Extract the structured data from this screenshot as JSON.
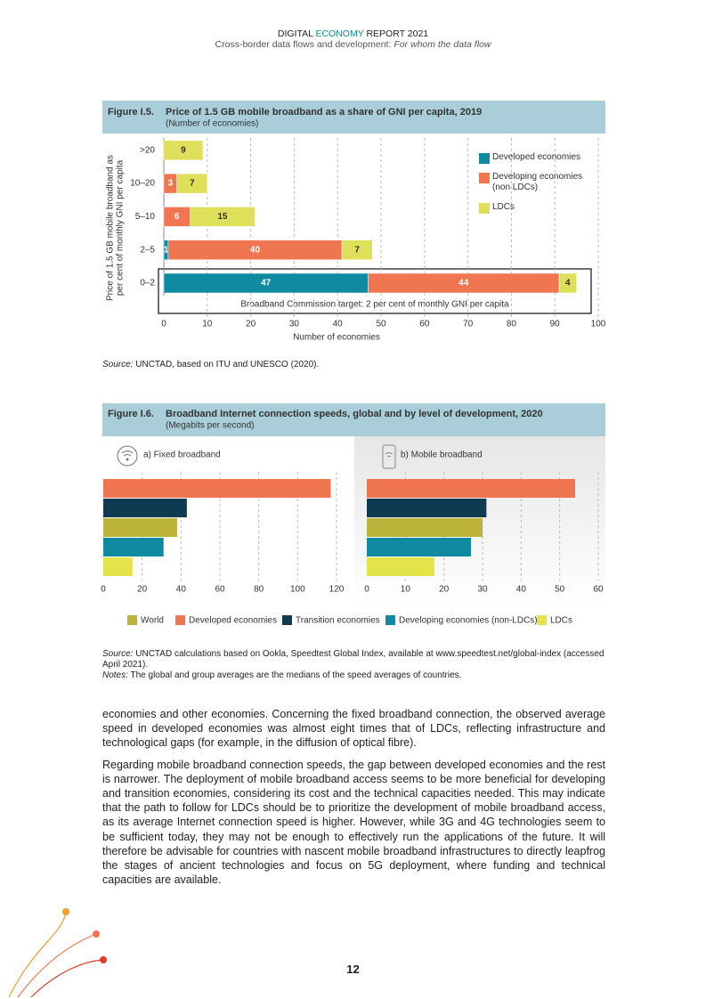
{
  "header": {
    "title_start": "DIGITAL",
    "title_mid": "ECONOMY",
    "title_end": "REPORT 2021",
    "subtitle": "Cross-border data flows and development:",
    "subtitle_italic": "For whom the data flow"
  },
  "chart_data": [
    {
      "type": "stacked-bar",
      "orientation": "horizontal",
      "figure": "Figure I.5.",
      "title": "Price of 1.5 GB mobile broadband as a share of GNI per capita, 2019",
      "subtitle": "(Number of economies)",
      "categories": [
        "0–2",
        "2–5",
        "5–10",
        "10–20",
        ">20"
      ],
      "series": [
        {
          "name": "Developed economies",
          "color": "#0f8aa0",
          "values": [
            47,
            1,
            null,
            null,
            null
          ]
        },
        {
          "name": "Developing economies (non LDCs)",
          "color": "#ef7650",
          "values": [
            44,
            40,
            6,
            3,
            null
          ]
        },
        {
          "name": "LDCs",
          "color": "#dfe05a",
          "values": [
            4,
            7,
            15,
            7,
            9
          ]
        }
      ],
      "xlim": [
        0,
        100
      ],
      "xticks": [
        0,
        10,
        20,
        30,
        40,
        50,
        60,
        70,
        80,
        90,
        100
      ],
      "xlabel": "Number of economies",
      "ylabel": [
        "Price of 1.5 GB mobile broadband as",
        "per cent of monthly GNI per capita"
      ],
      "annotation": "Broadband Commission target: 2 per cent of monthly GNI per capita",
      "grid": true,
      "legend": "upper right",
      "source_label": "Source:",
      "source": "UNCTAD, based on ITU and UNESCO (2020)."
    },
    {
      "type": "bar",
      "orientation": "horizontal",
      "figure": "Figure I.6.",
      "title": "Broadband Internet connection speeds, global and by level of development, 2020",
      "subtitle": "(Megabits per second)",
      "panels": [
        {
          "title": "a) Fixed broadband",
          "xlim": [
            0,
            120
          ],
          "xticks": [
            0,
            20,
            40,
            60,
            80,
            100,
            120
          ]
        },
        {
          "title": "b) Mobile broadband",
          "xlim": [
            0,
            60
          ],
          "xticks": [
            0,
            10,
            20,
            30,
            40,
            50,
            60
          ]
        }
      ],
      "series": [
        {
          "name": "World",
          "color": "#bcb33a",
          "values": [
            38,
            30
          ]
        },
        {
          "name": "Developed economies",
          "color": "#ef7650",
          "values": [
            117,
            54
          ]
        },
        {
          "name": "Transition economies",
          "color": "#0e3a52",
          "values": [
            43,
            31
          ]
        },
        {
          "name": "Developing economies (non-LDCs)",
          "color": "#0f8aa0",
          "values": [
            31,
            27
          ]
        },
        {
          "name": "LDCs",
          "color": "#e3e34a",
          "values": [
            15,
            17.5
          ]
        }
      ],
      "grid": true,
      "legend": "bottom",
      "source_label": "Source:",
      "source": "UNCTAD calculations based on Ookla, Speedtest Global Index, available at www.speedtest.net/global-index (accessed April 2021).",
      "notes_label": "Notes:",
      "notes": "The global and group averages are the medians of the speed averages of countries."
    }
  ],
  "body": [
    "economies and other economies. Concerning the fixed broadband connection, the observed average speed in developed economies was almost eight times that of LDCs, reflecting infrastructure and technological gaps (for example, in the diffusion of optical fibre).",
    "Regarding mobile broadband connection speeds, the gap between developed economies and the rest is narrower. The deployment of mobile broadband access seems to be more beneficial for developing and transition economies, considering its cost and the technical capacities needed. This may indicate that the path to follow for LDCs should be to prioritize the development of mobile broadband access, as its average Internet connection speed is higher. However, while 3G and 4G technologies seem to be sufficient today, they may not be enough to effectively run the applications of the future. It will therefore be advisable for countries with nascent mobile broadband infrastructures to directly leapfrog the stages of ancient technologies and focus on 5G deployment, where funding and technical capacities are available."
  ],
  "page_number": "12"
}
